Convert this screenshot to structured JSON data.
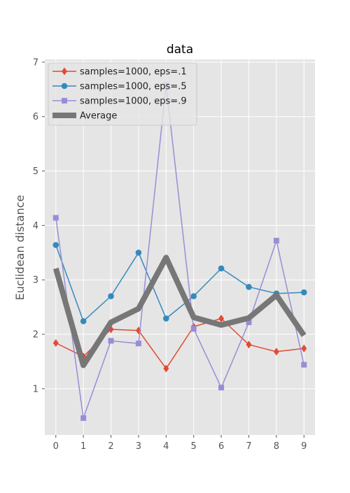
{
  "chart_data": {
    "type": "line",
    "title": "data",
    "xlabel": "",
    "ylabel": "Euclidean distance",
    "x": [
      0,
      1,
      2,
      3,
      4,
      5,
      6,
      7,
      8,
      9
    ],
    "x_ticks": [
      "0",
      "1",
      "2",
      "3",
      "4",
      "5",
      "6",
      "7",
      "8",
      "9"
    ],
    "y_ticks": [
      "1",
      "2",
      "3",
      "4",
      "5",
      "6",
      "7"
    ],
    "xlim": [
      -0.4,
      9.4
    ],
    "ylim": [
      0.15,
      7.05
    ],
    "grid": true,
    "legend_position": "top-left",
    "series": [
      {
        "name": "samples=1000, eps=.1",
        "marker": "diamond",
        "color": "#E24A33",
        "values": [
          1.84,
          1.59,
          2.09,
          2.07,
          1.37,
          2.14,
          2.29,
          1.81,
          1.68,
          1.74
        ]
      },
      {
        "name": "samples=1000, eps=.5",
        "marker": "circle",
        "color": "#348ABD",
        "values": [
          3.64,
          2.24,
          2.7,
          3.5,
          2.29,
          2.7,
          3.21,
          2.87,
          2.75,
          2.77
        ]
      },
      {
        "name": "samples=1000, eps=.9",
        "marker": "square",
        "color": "#988ED5",
        "values": [
          4.14,
          0.46,
          1.88,
          1.83,
          6.58,
          2.1,
          1.02,
          2.22,
          3.72,
          1.44
        ]
      },
      {
        "name": "Average",
        "marker": "none",
        "color": "#777777",
        "values": [
          3.21,
          1.43,
          2.22,
          2.47,
          3.41,
          2.31,
          2.17,
          2.3,
          2.72,
          1.98
        ]
      }
    ]
  }
}
